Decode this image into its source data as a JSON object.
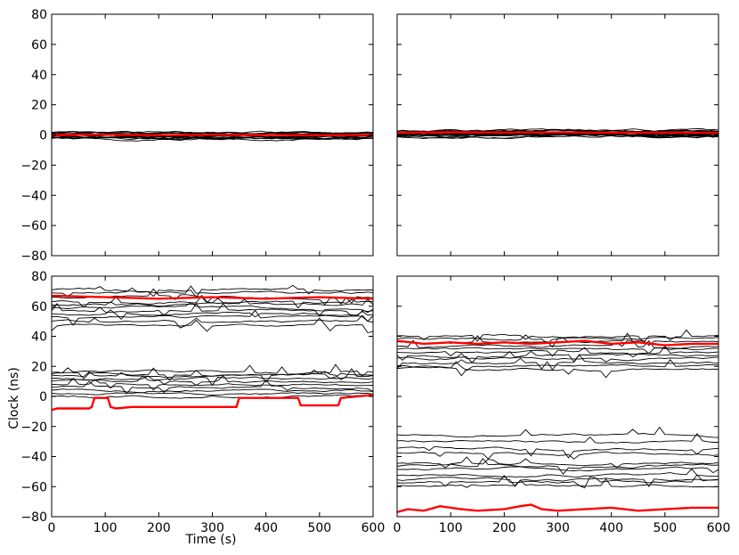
{
  "chart_data": {
    "type": "line",
    "ylabel": "Clock (ns)",
    "xlabel": "Time (s)",
    "xlim": [
      0,
      600
    ],
    "ylim": [
      -80,
      80
    ],
    "x_ticks": [
      "0",
      "100",
      "200",
      "300",
      "400",
      "500",
      "600"
    ],
    "y_ticks": [
      "80",
      "60",
      "40",
      "20",
      "0",
      "−20",
      "−40",
      "−60",
      "−80"
    ],
    "colors": {
      "traces": "#000000",
      "highlight": "#ff0000"
    },
    "panels": [
      {
        "id": "top-left",
        "show_x_ticklabels": false,
        "show_y_ticklabels": true,
        "show_xlabel": false,
        "show_ylabel": false,
        "trace_levels": [
          1.5,
          0.8,
          0.3,
          -0.2,
          -0.6,
          -1.0,
          -1.4,
          -1.8,
          -2.2,
          0.0,
          1.0,
          -2.6,
          0.5,
          -0.9,
          1.2,
          -1.6
        ],
        "highlight_series": [
          {
            "x": [
              0,
              100,
              200,
              300,
              400,
              500,
              600
            ],
            "y": [
              0.0,
              0.2,
              -0.1,
              0.1,
              0.0,
              -0.2,
              0.1
            ]
          }
        ]
      },
      {
        "id": "top-right",
        "show_x_ticklabels": false,
        "show_y_ticklabels": false,
        "show_xlabel": false,
        "show_ylabel": false,
        "trace_levels": [
          3.0,
          2.2,
          1.5,
          0.8,
          0.2,
          -0.4,
          -1.0,
          2.6,
          1.0,
          0.5,
          1.8,
          -0.2,
          2.9,
          1.3,
          0.0,
          -0.8
        ],
        "highlight_series": [
          {
            "x": [
              0,
              100,
              200,
              300,
              400,
              500,
              600
            ],
            "y": [
              1.5,
              1.8,
              1.6,
              1.7,
              1.5,
              1.6,
              1.4
            ]
          }
        ]
      },
      {
        "id": "bottom-left",
        "show_x_ticklabels": true,
        "show_y_ticklabels": true,
        "show_xlabel": true,
        "show_ylabel": true,
        "trace_levels": [
          71,
          69,
          66,
          63,
          61,
          59,
          57,
          55,
          53,
          50,
          47,
          16,
          15,
          14,
          12,
          10,
          8,
          6,
          4,
          2,
          0
        ],
        "highlight_series": [
          {
            "x": [
              0,
              10,
              70,
              75,
              80,
              105,
              110,
              120,
              150,
              200,
              250,
              300,
              345,
              350,
              400,
              460,
              465,
              500,
              535,
              540,
              600
            ],
            "y": [
              -9,
              -8,
              -8,
              -7,
              -1,
              -1,
              -7,
              -8,
              -7,
              -7,
              -7,
              -7,
              -7,
              -1,
              -1,
              -1,
              -6,
              -6,
              -6,
              -1,
              1
            ]
          },
          {
            "x": [
              0,
              100,
              200,
              300,
              400,
              500,
              600
            ],
            "y": [
              67,
              66,
              65,
              66,
              65,
              66,
              65
            ]
          }
        ]
      },
      {
        "id": "bottom-right",
        "show_x_ticklabels": true,
        "show_y_ticklabels": false,
        "show_xlabel": false,
        "show_ylabel": false,
        "trace_levels": [
          40,
          38,
          36,
          33,
          31,
          29,
          27,
          25,
          22,
          20,
          18,
          -26,
          -30,
          -35,
          -38,
          -44,
          -46,
          -48,
          -52,
          -55,
          -57,
          -59
        ],
        "highlight_series": [
          {
            "x": [
              0,
              50,
              100,
              150,
              200,
              250,
              300,
              350,
              400,
              450,
              500,
              550,
              600
            ],
            "y": [
              37,
              35,
              36,
              35,
              36,
              35,
              36,
              37,
              35,
              36,
              34,
              35,
              35
            ]
          },
          {
            "x": [
              0,
              20,
              50,
              80,
              120,
              150,
              200,
              230,
              250,
              270,
              300,
              350,
              400,
              450,
              500,
              550,
              600
            ],
            "y": [
              -77,
              -75,
              -76,
              -73,
              -75,
              -76,
              -75,
              -73,
              -72,
              -75,
              -76,
              -75,
              -74,
              -76,
              -75,
              -74,
              -74
            ]
          }
        ]
      }
    ]
  }
}
